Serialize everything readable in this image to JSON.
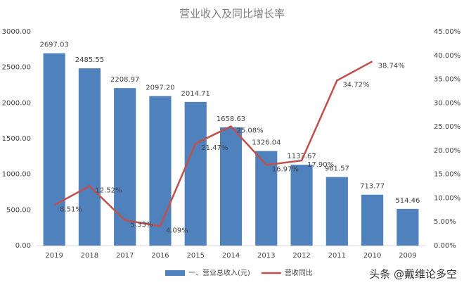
{
  "chart_data": {
    "type": "bar",
    "title": "营业收入及同比增长率",
    "categories": [
      "2019",
      "2018",
      "2017",
      "2016",
      "2015",
      "2014",
      "2013",
      "2012",
      "2011",
      "2010",
      "2009"
    ],
    "series": [
      {
        "name": "一、营业总收入(元)",
        "color": "#4f81bd",
        "values": [
          2697.03,
          2485.55,
          2208.97,
          2097.2,
          2014.71,
          1658.63,
          1326.04,
          1133.67,
          961.57,
          713.77,
          514.46
        ],
        "value_labels": [
          "2697.03",
          "2485.55",
          "2208.97",
          "2097.20",
          "2014.71",
          "1658.63",
          "1326.04",
          "1133.67",
          "961.57",
          "713.77",
          "514.46"
        ]
      },
      {
        "name": "营收同比",
        "color": "#c0504d",
        "type": "line",
        "axis": "y2",
        "values": [
          8.51,
          12.52,
          5.33,
          4.09,
          21.47,
          25.08,
          16.97,
          17.9,
          34.72,
          38.74,
          null
        ],
        "value_labels": [
          "8.51%",
          "12.52%",
          "5.33%",
          "4.09%",
          "21.47%",
          "25.08%",
          "16.97%",
          "17.90%",
          "34.72%",
          "38.74%",
          null
        ]
      }
    ],
    "ylim": [
      0,
      3000
    ],
    "yticks": [
      {
        "value": 0,
        "label": "0.00"
      },
      {
        "value": 500,
        "label": "500.00"
      },
      {
        "value": 1000,
        "label": "1000.00"
      },
      {
        "value": 1500,
        "label": "1500.00"
      },
      {
        "value": 2000,
        "label": "2000.00"
      },
      {
        "value": 2500,
        "label": "2500.00"
      },
      {
        "value": 3000,
        "label": "3000.00"
      }
    ],
    "y2lim": [
      0,
      45
    ],
    "y2ticks": [
      {
        "value": 0,
        "label": "0.00%"
      },
      {
        "value": 5,
        "label": "5.00%"
      },
      {
        "value": 10,
        "label": "10.00%"
      },
      {
        "value": 15,
        "label": "15.00%"
      },
      {
        "value": 20,
        "label": "20.00%"
      },
      {
        "value": 25,
        "label": "25.00%"
      },
      {
        "value": 30,
        "label": "30.00%"
      },
      {
        "value": 35,
        "label": "35.00%"
      },
      {
        "value": 40,
        "label": "40.00%"
      },
      {
        "value": 45,
        "label": "45.00%"
      }
    ],
    "legend": "bottom",
    "watermark": "头条 @戴维论多空"
  }
}
